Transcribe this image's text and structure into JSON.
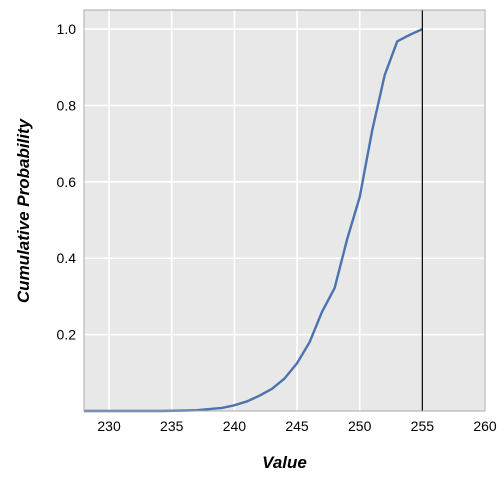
{
  "chart_data": {
    "type": "line",
    "title": "",
    "xlabel": "Value",
    "ylabel": "Cumulative Probability",
    "xlim": [
      228,
      260
    ],
    "ylim": [
      0,
      1.05
    ],
    "x_ticks": [
      230,
      235,
      240,
      245,
      250,
      255,
      260
    ],
    "y_ticks": [
      0.2,
      0.4,
      0.6,
      0.8,
      1.0
    ],
    "x_tick_labels": [
      "230",
      "235",
      "240",
      "245",
      "250",
      "255",
      "260"
    ],
    "y_tick_labels": [
      "0.2",
      "0.4",
      "0.6",
      "0.8",
      "1.0"
    ],
    "grid": true,
    "background_color": "#e8e8e8",
    "line_color": "#4c72b0",
    "reference_line": {
      "x": 255,
      "color": "#000000"
    },
    "series": [
      {
        "x": [
          228,
          230,
          232,
          234,
          236,
          237,
          238,
          239,
          240,
          241,
          242,
          243,
          244,
          245,
          246,
          247,
          248,
          249,
          250,
          251,
          252,
          253,
          254,
          255
        ],
        "y": [
          0.0,
          0.0,
          0.0,
          0.0,
          0.001,
          0.002,
          0.005,
          0.008,
          0.015,
          0.025,
          0.04,
          0.058,
          0.085,
          0.125,
          0.18,
          0.26,
          0.322,
          0.45,
          0.56,
          0.735,
          0.88,
          0.968,
          0.985,
          1.0
        ]
      }
    ]
  }
}
